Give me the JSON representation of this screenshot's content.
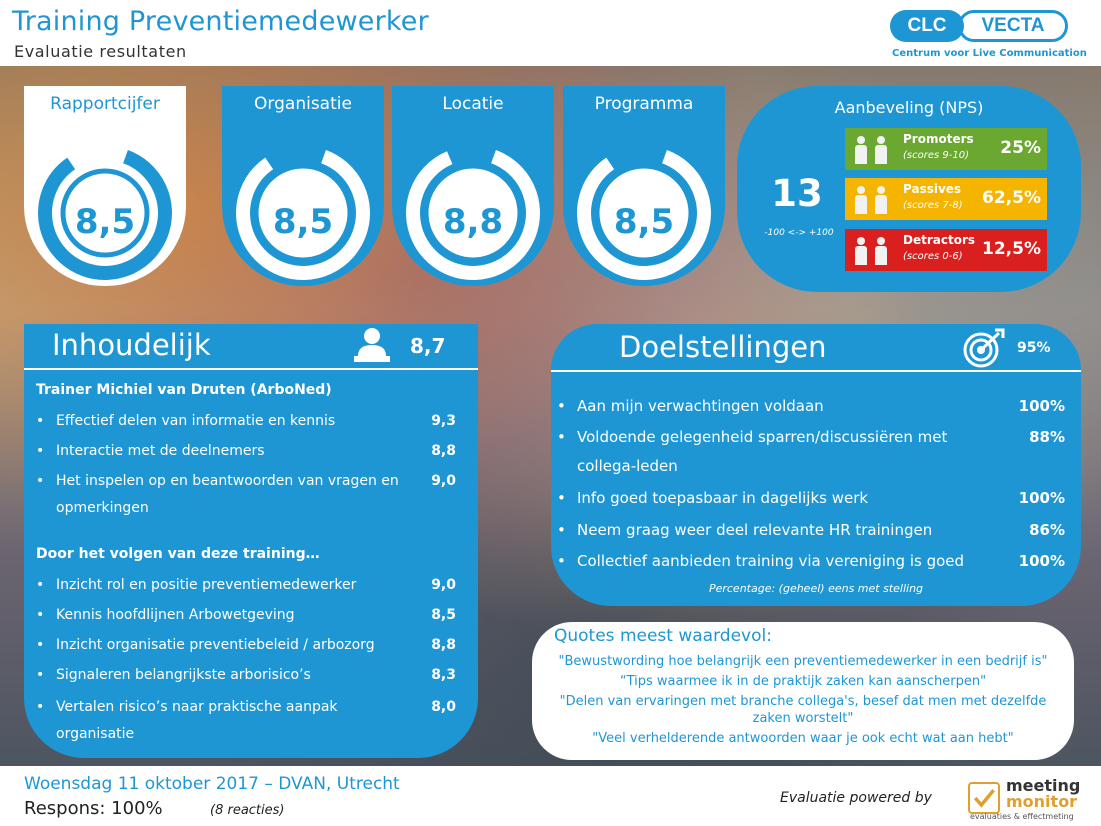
{
  "header": {
    "title": "Training Preventiemedewerker",
    "subtitle": "Evaluatie resultaten"
  },
  "logo": {
    "part1": "CLC",
    "part2": "VECTA",
    "tagline": "Centrum voor Live Communication"
  },
  "cards": [
    {
      "title": "Rapportcijfer",
      "value": "8,5",
      "style": "white"
    },
    {
      "title": "Organisatie",
      "value": "8,5",
      "style": "blue"
    },
    {
      "title": "Locatie",
      "value": "8,8",
      "style": "blue"
    },
    {
      "title": "Programma",
      "value": "8,5",
      "style": "blue"
    }
  ],
  "nps": {
    "title": "Aanbeveling (NPS)",
    "score": "13",
    "range": "-100 <-> +100",
    "rows": [
      {
        "label": "Promoters",
        "hint": "(scores 9-10)",
        "pct": "25%",
        "color": "#6aa832"
      },
      {
        "label": "Passives",
        "hint": "(scores 7-8)",
        "pct": "62,5%",
        "color": "#f5b400"
      },
      {
        "label": "Detractors",
        "hint": "(scores 0-6)",
        "pct": "12,5%",
        "color": "#d9201f"
      }
    ]
  },
  "inhoudelijk": {
    "title": "Inhoudelijk",
    "score": "8,7",
    "icon": "presenter-icon",
    "section1": "Trainer Michiel van Druten (ArboNed)",
    "items1": [
      {
        "text": "Effectief delen van informatie en kennis",
        "score": "9,3"
      },
      {
        "text": "Interactie met de deelnemers",
        "score": "8,8"
      },
      {
        "text": "Het inspelen op en beantwoorden van vragen en opmerkingen",
        "score": "9,0"
      }
    ],
    "section2": "Door het volgen van deze training…",
    "items2": [
      {
        "text": "Inzicht rol en positie preventiemedewerker",
        "score": "9,0"
      },
      {
        "text": "Kennis hoofdlijnen Arbowetgeving",
        "score": "8,5"
      },
      {
        "text": "Inzicht organisatie preventiebeleid / arbozorg",
        "score": "8,8"
      },
      {
        "text": "Signaleren belangrijkste arborisico’s",
        "score": "8,3"
      },
      {
        "text": "Vertalen risico’s naar praktische aanpak organisatie",
        "score": "8,0"
      }
    ]
  },
  "doelstellingen": {
    "title": "Doelstellingen",
    "score": "95%",
    "icon": "target-icon",
    "items": [
      {
        "text": "Aan mijn verwachtingen voldaan",
        "score": "100%"
      },
      {
        "text": "Voldoende gelegenheid sparren/discussiëren met collega-leden",
        "score": "88%"
      },
      {
        "text": "Info goed toepasbaar in dagelijks werk",
        "score": "100%"
      },
      {
        "text": "Neem graag weer deel relevante HR trainingen",
        "score": "86%"
      },
      {
        "text": "Collectief aanbieden training via vereniging is goed",
        "score": "100%"
      }
    ],
    "note": "Percentage: (geheel) eens met stelling"
  },
  "quotes": {
    "title": "Quotes meest waardevol:",
    "lines": [
      "\"Bewustwording hoe belangrijk een preventiemedewerker in een bedrijf is\"",
      "“Tips waarmee ik in de praktijk zaken kan aanscherpen\"",
      "\"Delen van ervaringen met branche collega's, besef dat men met dezelfde",
      "zaken worstelt\"",
      "\"Veel verhelderende antwoorden waar je ook echt wat aan hebt\""
    ]
  },
  "footer": {
    "date": "Woensdag 11 oktober 2017 – DVAN, Utrecht",
    "response": "Respons: 100%",
    "response_count": "(8 reacties)",
    "powered": "Evaluatie powered by",
    "mm_line1": "meeting",
    "mm_line2": "monitor",
    "mm_tagline": "evaluaties & effectmeting"
  }
}
